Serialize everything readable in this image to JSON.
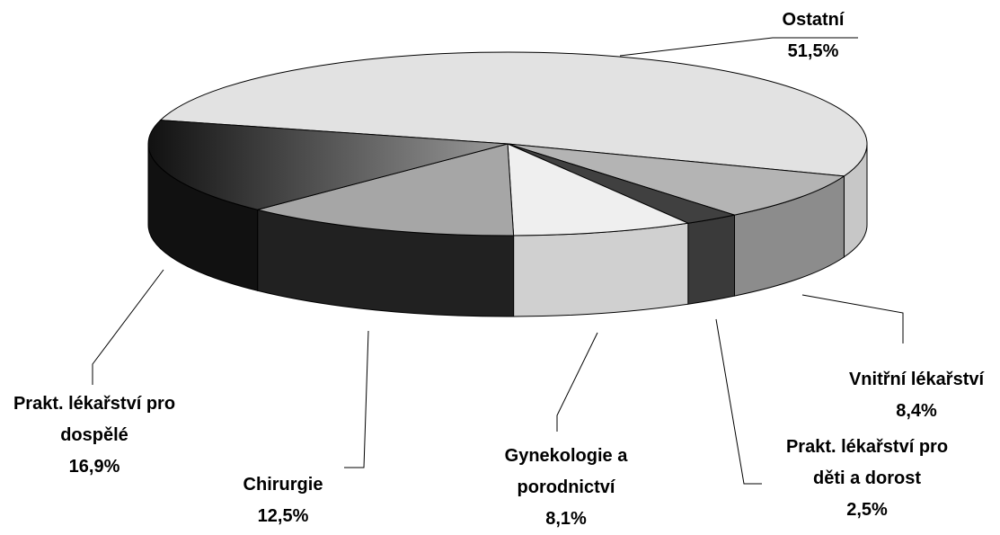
{
  "chart_data": {
    "type": "pie3d",
    "categories": [
      "Ostatní",
      "Vnitřní lékařství",
      "Prakt. lékařství pro děti a dorost",
      "Gynekologie a porodnictví",
      "Chirurgie",
      "Prakt. lékařství pro dospělé"
    ],
    "values": [
      51.5,
      8.4,
      2.5,
      8.1,
      12.5,
      16.9
    ],
    "value_labels": [
      "51,5%",
      "8,4%",
      "2,5%",
      "8,1%",
      "12,5%",
      "16,9%"
    ],
    "colors": [
      "#e2e2e2",
      "#b4b4b4",
      "#404040",
      "#efefef",
      "#a6a6a6",
      "#3a3a3a"
    ]
  }
}
